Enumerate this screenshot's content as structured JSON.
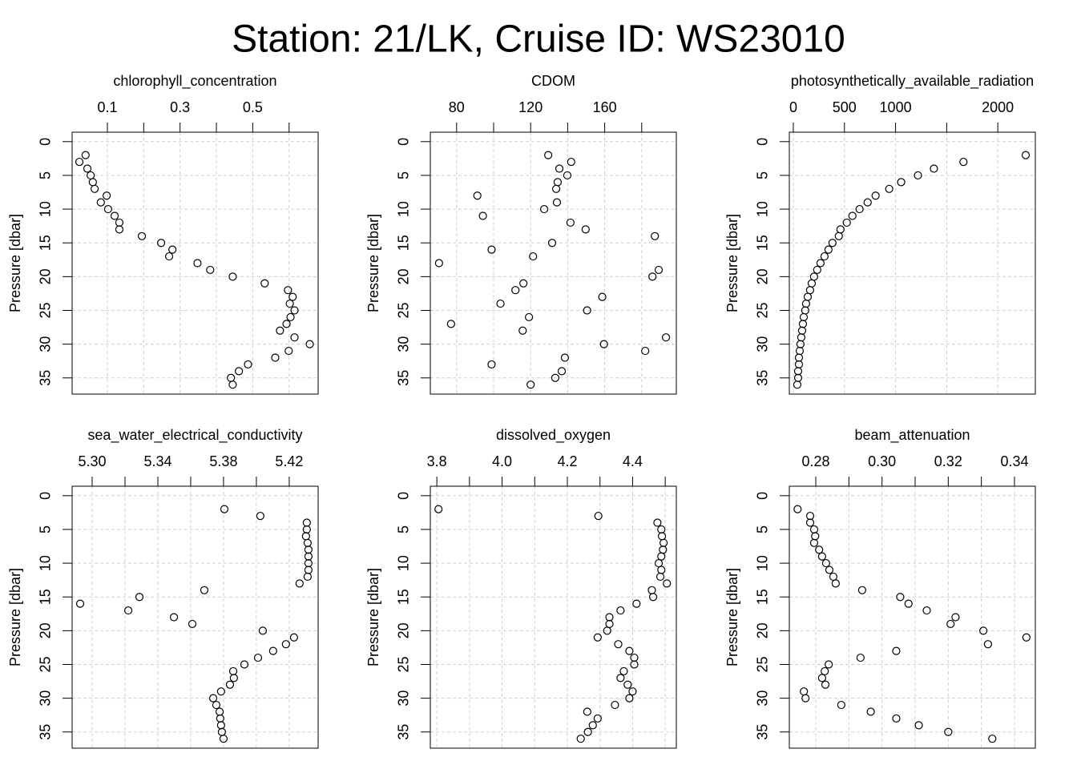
{
  "title": "Station: 21/LK, Cruise ID: WS23010",
  "chart_data": [
    {
      "type": "scatter",
      "title": "chlorophyll_concentration",
      "ylabel": "Pressure [dbar]",
      "x": [
        0.04,
        0.023,
        0.045,
        0.054,
        0.06,
        0.065,
        0.098,
        0.082,
        0.102,
        0.12,
        0.133,
        0.133,
        0.195,
        0.248,
        0.279,
        0.27,
        0.348,
        0.383,
        0.445,
        0.533,
        0.597,
        0.61,
        0.602,
        0.615,
        0.604,
        0.593,
        0.575,
        0.615,
        0.657,
        0.599,
        0.562,
        0.487,
        0.462,
        0.44,
        0.445
      ],
      "y": [
        2,
        3,
        4,
        5,
        6,
        7,
        8,
        9,
        10,
        11,
        12,
        13,
        14,
        15,
        16,
        17,
        18,
        19,
        20,
        21,
        22,
        23,
        24,
        25,
        26,
        27,
        28,
        29,
        30,
        31,
        32,
        33,
        34,
        35,
        36
      ],
      "xlim": [
        0.003,
        0.68
      ],
      "xticks": [
        0.1,
        0.3,
        0.5
      ],
      "xminorticks": [
        0.2,
        0.4,
        0.6
      ],
      "ylim": [
        -1.4,
        37.4
      ],
      "yticks": [
        0,
        5,
        10,
        15,
        20,
        25,
        30,
        35
      ],
      "y_inverted": true,
      "grid": true
    },
    {
      "type": "scatter",
      "title": "CDOM",
      "ylabel": "Pressure [dbar]",
      "x": [
        129.5,
        141.9,
        135.5,
        139.8,
        134.6,
        133.8,
        91.2,
        134.2,
        127.3,
        94.2,
        141.5,
        149.7,
        187.1,
        131.6,
        98.9,
        121.3,
        70.5,
        189.2,
        185.8,
        116.1,
        111.8,
        158.7,
        103.7,
        150.5,
        119.1,
        77.0,
        115.7,
        193.1,
        159.6,
        181.9,
        138.5,
        98.9,
        136.8,
        133.3,
        120.0
      ],
      "y": [
        2,
        3,
        4,
        5,
        6,
        7,
        8,
        9,
        10,
        11,
        12,
        13,
        14,
        15,
        16,
        17,
        18,
        19,
        20,
        21,
        22,
        23,
        24,
        25,
        26,
        27,
        28,
        29,
        30,
        31,
        32,
        33,
        34,
        35,
        36
      ],
      "xlim": [
        65.8,
        198.7
      ],
      "xticks": [
        80,
        120,
        160
      ],
      "xminorticks": [
        100,
        140,
        180
      ],
      "ylim": [
        -1.4,
        37.4
      ],
      "yticks": [
        0,
        5,
        10,
        15,
        20,
        25,
        30,
        35
      ],
      "y_inverted": true,
      "grid": true
    },
    {
      "type": "scatter",
      "title": "photosynthetically_available_radiation",
      "ylabel": "Pressure [dbar]",
      "x": [
        2273,
        1664,
        1375,
        1219,
        1055,
        938,
        805,
        727,
        648,
        578,
        523,
        461,
        445,
        383,
        344,
        305,
        266,
        234,
        203,
        180,
        164,
        141,
        125,
        117,
        102,
        94,
        86,
        78,
        70,
        63,
        55,
        55,
        47,
        47,
        39
      ],
      "y": [
        2,
        3,
        4,
        5,
        6,
        7,
        8,
        9,
        10,
        11,
        12,
        13,
        14,
        15,
        16,
        17,
        18,
        19,
        20,
        21,
        22,
        23,
        24,
        25,
        26,
        27,
        28,
        29,
        30,
        31,
        32,
        33,
        34,
        35,
        36
      ],
      "xlim": [
        -39,
        2367
      ],
      "xticks": [
        0,
        500,
        1000,
        2000
      ],
      "xminorticks": [
        1500
      ],
      "ylim": [
        -1.4,
        37.4
      ],
      "yticks": [
        0,
        5,
        10,
        15,
        20,
        25,
        30,
        35
      ],
      "y_inverted": true,
      "grid": true
    },
    {
      "type": "scatter",
      "title": "sea_water_electrical_conductivity",
      "ylabel": "Pressure [dbar]",
      "x": [
        5.3805,
        5.4024,
        5.4307,
        5.4307,
        5.4302,
        5.4312,
        5.4317,
        5.4317,
        5.4317,
        5.4317,
        5.4312,
        5.4263,
        5.3683,
        5.3288,
        5.2927,
        5.322,
        5.3498,
        5.361,
        5.4039,
        5.4229,
        5.418,
        5.4102,
        5.401,
        5.3927,
        5.3859,
        5.3863,
        5.3839,
        5.3785,
        5.3737,
        5.3756,
        5.3776,
        5.378,
        5.3785,
        5.379,
        5.38
      ],
      "y": [
        2,
        3,
        4,
        5,
        6,
        7,
        8,
        9,
        10,
        11,
        12,
        13,
        14,
        15,
        16,
        17,
        18,
        19,
        20,
        21,
        22,
        23,
        24,
        25,
        26,
        27,
        28,
        29,
        30,
        31,
        32,
        33,
        34,
        35,
        36
      ],
      "xlim": [
        5.2878,
        5.4376
      ],
      "xticks": [
        {
          "value": 5.3,
          "label": "5.30"
        },
        5.34,
        5.38,
        5.42
      ],
      "xminorticks": [
        5.32,
        5.36,
        5.4
      ],
      "ylim": [
        -1.4,
        37.4
      ],
      "yticks": [
        0,
        5,
        10,
        15,
        20,
        25,
        30,
        35
      ],
      "y_inverted": true,
      "grid": true
    },
    {
      "type": "scatter",
      "title": "dissolved_oxygen",
      "ylabel": "Pressure [dbar]",
      "x": [
        3.805,
        4.295,
        4.476,
        4.488,
        4.49,
        4.495,
        4.493,
        4.488,
        4.48,
        4.488,
        4.485,
        4.505,
        4.459,
        4.463,
        4.412,
        4.363,
        4.329,
        4.329,
        4.322,
        4.293,
        4.356,
        4.39,
        4.405,
        4.405,
        4.373,
        4.363,
        4.385,
        4.4,
        4.39,
        4.346,
        4.261,
        4.293,
        4.278,
        4.263,
        4.241
      ],
      "y": [
        2,
        3,
        4,
        5,
        6,
        7,
        8,
        9,
        10,
        11,
        12,
        13,
        14,
        15,
        16,
        17,
        18,
        19,
        20,
        21,
        22,
        23,
        24,
        25,
        26,
        27,
        28,
        29,
        30,
        31,
        32,
        33,
        34,
        35,
        36
      ],
      "xlim": [
        3.78,
        4.534
      ],
      "xticks": [
        3.8,
        {
          "value": 4,
          "label": "4.0"
        },
        4.2,
        4.4
      ],
      "xminorticks": [
        3.9,
        4.1,
        4.3,
        4.5
      ],
      "ylim": [
        -1.4,
        37.4
      ],
      "yticks": [
        0,
        5,
        10,
        15,
        20,
        25,
        30,
        35
      ],
      "y_inverted": true,
      "grid": true
    },
    {
      "type": "scatter",
      "title": "beam_attenuation",
      "ylabel": "Pressure [dbar]",
      "x": [
        0.2745,
        0.2783,
        0.2783,
        0.2795,
        0.2798,
        0.2795,
        0.281,
        0.2819,
        0.2831,
        0.2841,
        0.2853,
        0.286,
        0.294,
        0.3055,
        0.308,
        0.3135,
        0.3222,
        0.3207,
        0.3306,
        0.3436,
        0.332,
        0.3043,
        0.2935,
        0.2839,
        0.2827,
        0.2819,
        0.2829,
        0.2764,
        0.2769,
        0.2877,
        0.2966,
        0.3043,
        0.3111,
        0.32,
        0.3333
      ],
      "y": [
        2,
        3,
        4,
        5,
        6,
        7,
        8,
        9,
        10,
        11,
        12,
        13,
        14,
        15,
        16,
        17,
        18,
        19,
        20,
        21,
        22,
        23,
        24,
        25,
        26,
        27,
        28,
        29,
        30,
        31,
        32,
        33,
        34,
        35,
        36
      ],
      "xlim": [
        0.272,
        0.3463
      ],
      "xticks": [
        0.28,
        {
          "value": 0.3,
          "label": "0.30"
        },
        0.32,
        0.34
      ],
      "xminorticks": [
        0.29,
        0.31,
        0.33
      ],
      "ylim": [
        -1.4,
        37.4
      ],
      "yticks": [
        0,
        5,
        10,
        15,
        20,
        25,
        30,
        35
      ],
      "y_inverted": true,
      "grid": true
    }
  ]
}
